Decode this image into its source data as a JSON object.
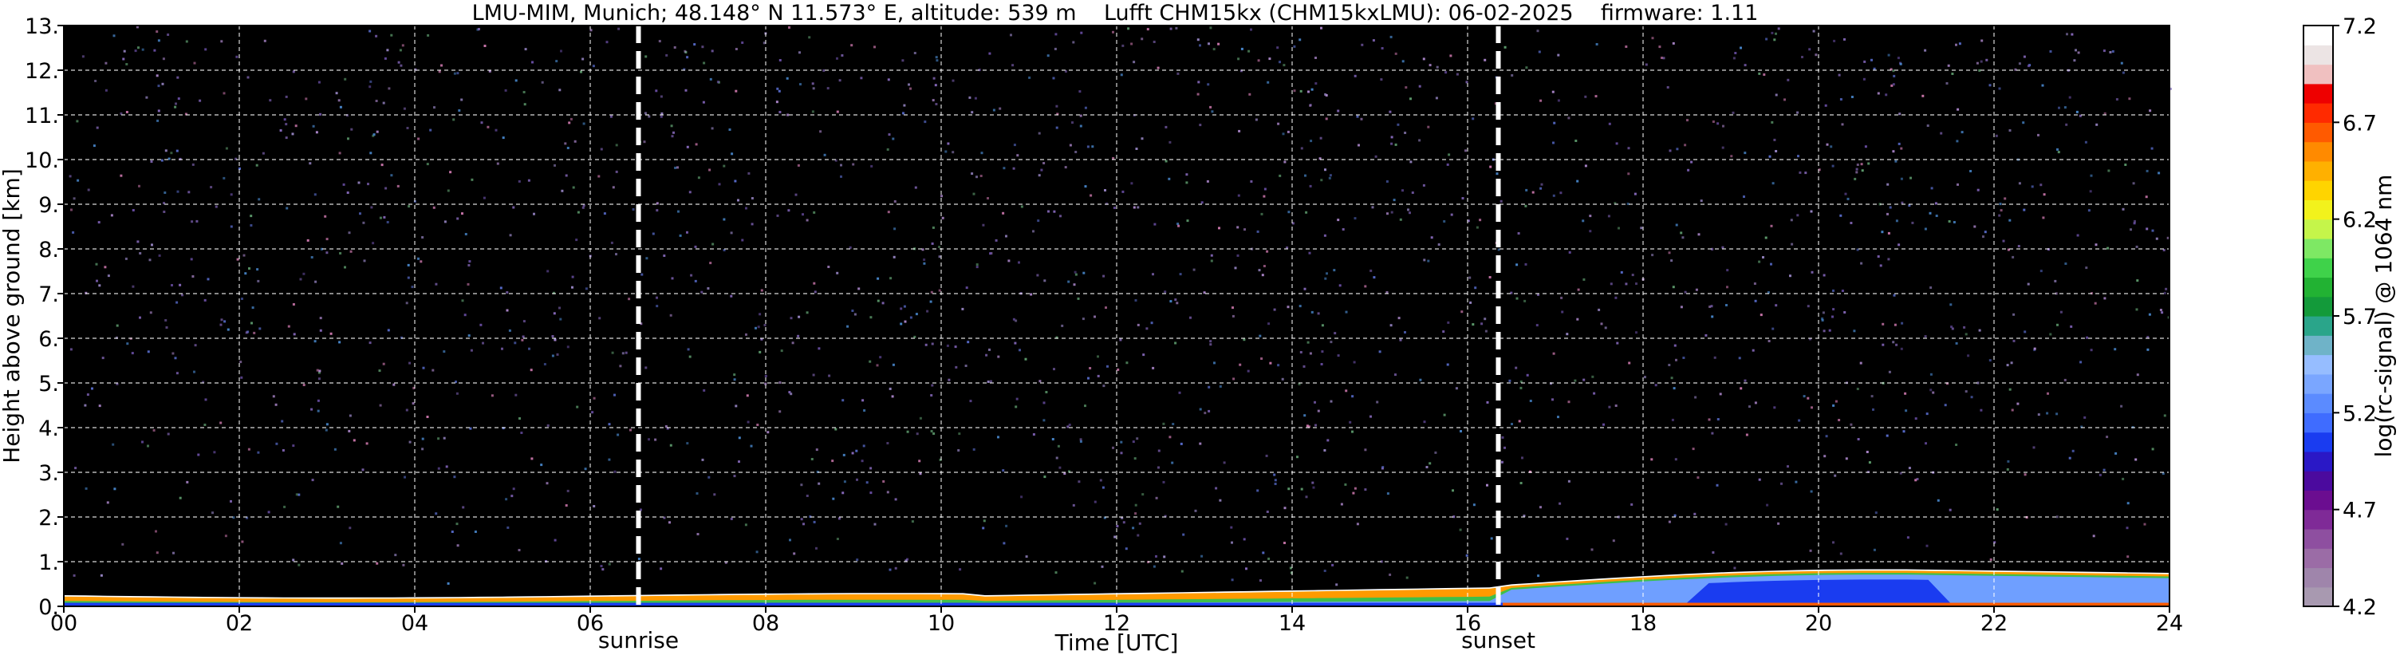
{
  "chart_data": {
    "type": "heatmap",
    "title": "LMU-MIM, Munich; 48.148° N 11.573° E, altitude: 539 m    Lufft CHM15kx (CHM15kxLMU): 06-02-2025    firmware: 1.11",
    "xlabel": "Time [UTC]",
    "ylabel": "Height above ground [km]",
    "xlim": [
      0,
      24
    ],
    "ylim": [
      0,
      13
    ],
    "x_ticks": [
      "00",
      "02",
      "04",
      "06",
      "08",
      "10",
      "12",
      "14",
      "16",
      "18",
      "20",
      "22",
      "24"
    ],
    "y_ticks": [
      "0.",
      "1.",
      "2.",
      "3.",
      "4.",
      "5.",
      "6.",
      "7.",
      "8.",
      "9.",
      "10.",
      "11.",
      "12.",
      "13."
    ],
    "grid": true,
    "colorbar": {
      "label": "log(rc-signal) @ 1064 nm",
      "range": [
        4.2,
        7.2
      ],
      "ticks": [
        "4.2",
        "4.7",
        "5.2",
        "5.7",
        "6.2",
        "6.7",
        "7.2"
      ],
      "colors": [
        "#a899b0",
        "#9f85ab",
        "#9b6ca6",
        "#8e4fa0",
        "#7f2a97",
        "#6b0d90",
        "#4b0a9e",
        "#2a18c6",
        "#1a3cf0",
        "#3f6cff",
        "#5b8bff",
        "#7aa6ff",
        "#96bdff",
        "#6fb3c8",
        "#2aa58a",
        "#139a3a",
        "#22b233",
        "#3fd24a",
        "#7ee864",
        "#c5f54a",
        "#f2f21c",
        "#ffd400",
        "#ffb000",
        "#ff8a00",
        "#ff5a00",
        "#ff2a00",
        "#ee0000",
        "#f0c0c0",
        "#ece4e4",
        "#ffffff"
      ]
    },
    "annotations": [
      {
        "label": "sunrise",
        "x": 6.55
      },
      {
        "label": "sunset",
        "x": 16.35
      }
    ]
  }
}
